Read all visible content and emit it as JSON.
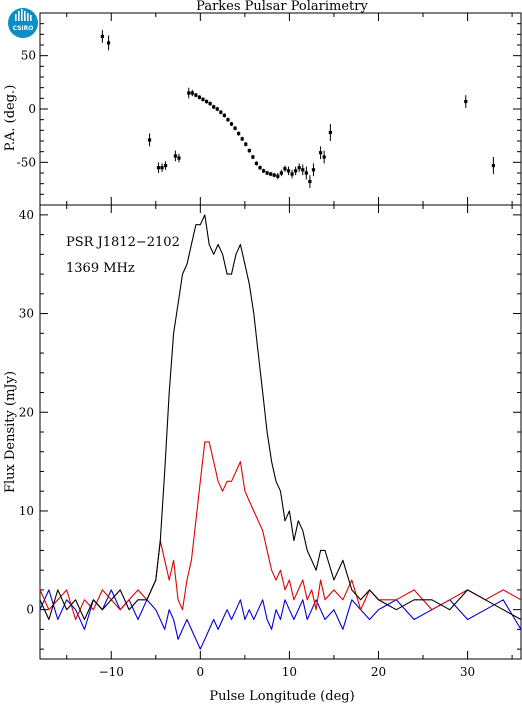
{
  "title": "Parkes Pulsar Polarimetry",
  "logo": {
    "text": "CSIRO",
    "color": "#0a8fc4",
    "icon": "csiro-logo"
  },
  "chart_data": [
    {
      "type": "scatter",
      "name": "position-angle",
      "ylabel": "P.A. (deg.)",
      "xlim": [
        -18,
        36
      ],
      "ylim": [
        -90,
        90
      ],
      "yticks": [
        -50,
        0,
        50
      ],
      "points": [
        {
          "x": -11.0,
          "y": 68,
          "err": 6
        },
        {
          "x": -10.3,
          "y": 62,
          "err": 7
        },
        {
          "x": -5.7,
          "y": -29,
          "err": 6
        },
        {
          "x": -4.7,
          "y": -55,
          "err": 5
        },
        {
          "x": -4.3,
          "y": -55,
          "err": 4
        },
        {
          "x": -3.9,
          "y": -53,
          "err": 4
        },
        {
          "x": -2.8,
          "y": -44,
          "err": 5
        },
        {
          "x": -2.4,
          "y": -46,
          "err": 4
        },
        {
          "x": -1.3,
          "y": 15,
          "err": 5
        },
        {
          "x": -0.9,
          "y": 15,
          "err": 3
        },
        {
          "x": -0.5,
          "y": 13,
          "err": 2
        },
        {
          "x": -0.1,
          "y": 11,
          "err": 2
        },
        {
          "x": 0.3,
          "y": 9,
          "err": 2
        },
        {
          "x": 0.7,
          "y": 7,
          "err": 2
        },
        {
          "x": 1.1,
          "y": 5,
          "err": 2
        },
        {
          "x": 1.5,
          "y": 2,
          "err": 2
        },
        {
          "x": 1.9,
          "y": 0,
          "err": 2
        },
        {
          "x": 2.3,
          "y": -3,
          "err": 2
        },
        {
          "x": 2.7,
          "y": -6,
          "err": 2
        },
        {
          "x": 3.1,
          "y": -10,
          "err": 2
        },
        {
          "x": 3.5,
          "y": -14,
          "err": 2
        },
        {
          "x": 3.9,
          "y": -18,
          "err": 2
        },
        {
          "x": 4.3,
          "y": -23,
          "err": 2
        },
        {
          "x": 4.7,
          "y": -28,
          "err": 2
        },
        {
          "x": 5.1,
          "y": -33,
          "err": 2
        },
        {
          "x": 5.5,
          "y": -39,
          "err": 2
        },
        {
          "x": 5.9,
          "y": -45,
          "err": 2
        },
        {
          "x": 6.3,
          "y": -51,
          "err": 2
        },
        {
          "x": 6.7,
          "y": -55,
          "err": 2
        },
        {
          "x": 7.1,
          "y": -58,
          "err": 2
        },
        {
          "x": 7.5,
          "y": -60,
          "err": 2
        },
        {
          "x": 7.9,
          "y": -61,
          "err": 2
        },
        {
          "x": 8.3,
          "y": -62,
          "err": 2
        },
        {
          "x": 8.7,
          "y": -63,
          "err": 3
        },
        {
          "x": 9.1,
          "y": -60,
          "err": 3
        },
        {
          "x": 9.5,
          "y": -56,
          "err": 3
        },
        {
          "x": 9.9,
          "y": -58,
          "err": 4
        },
        {
          "x": 10.3,
          "y": -61,
          "err": 4
        },
        {
          "x": 10.7,
          "y": -58,
          "err": 4
        },
        {
          "x": 11.1,
          "y": -55,
          "err": 4
        },
        {
          "x": 11.5,
          "y": -57,
          "err": 5
        },
        {
          "x": 11.9,
          "y": -60,
          "err": 6
        },
        {
          "x": 12.3,
          "y": -68,
          "err": 6
        },
        {
          "x": 12.7,
          "y": -57,
          "err": 6
        },
        {
          "x": 13.5,
          "y": -41,
          "err": 6
        },
        {
          "x": 13.9,
          "y": -45,
          "err": 6
        },
        {
          "x": 14.6,
          "y": -22,
          "err": 8
        },
        {
          "x": 29.8,
          "y": 7,
          "err": 6
        },
        {
          "x": 32.9,
          "y": -53,
          "err": 8
        }
      ]
    },
    {
      "type": "line",
      "name": "flux-density",
      "title": "PSR J1812−2102",
      "subtitle": "1369 MHz",
      "xlabel": "Pulse Longitude (deg)",
      "ylabel": "Flux Density (mJy)",
      "xlim": [
        -18,
        36
      ],
      "ylim": [
        -5,
        41
      ],
      "xticks": [
        -10,
        0,
        10,
        20,
        30
      ],
      "yticks": [
        0,
        10,
        20,
        30,
        40
      ],
      "series": [
        {
          "color": "#000000",
          "x": [
            -18,
            -17,
            -16,
            -15,
            -14,
            -13,
            -12,
            -11,
            -10,
            -9,
            -8,
            -7,
            -6,
            -5,
            -4.5,
            -4,
            -3.5,
            -3,
            -2.5,
            -2,
            -1.5,
            -1,
            -0.5,
            0,
            0.5,
            1,
            1.5,
            2,
            2.5,
            3,
            3.5,
            4,
            4.5,
            5,
            5.5,
            6,
            6.5,
            7,
            7.5,
            8,
            8.5,
            9,
            9.5,
            10,
            10.5,
            11,
            11.5,
            12,
            12.5,
            13,
            13.5,
            14,
            15,
            16,
            17,
            18,
            19,
            20,
            22,
            24,
            26,
            28,
            30,
            32,
            34,
            36
          ],
          "y": [
            1,
            -1,
            2,
            0,
            1,
            -1,
            1,
            0,
            1,
            2,
            0,
            1,
            1,
            3,
            7,
            14,
            22,
            28,
            31,
            34,
            35,
            37,
            39,
            39,
            40,
            37,
            36,
            37,
            36,
            34,
            34,
            36,
            37,
            35,
            33,
            30,
            26,
            22,
            18,
            15,
            13,
            12,
            9,
            10,
            7,
            9,
            8,
            6,
            5,
            4,
            6,
            6,
            3,
            5,
            2,
            1,
            2,
            1,
            0,
            1,
            1,
            0,
            2,
            1,
            0,
            -1
          ]
        },
        {
          "color": "#e00000",
          "x": [
            -18,
            -17,
            -16,
            -15,
            -14,
            -13,
            -12,
            -11,
            -10,
            -9,
            -8,
            -7,
            -6,
            -5,
            -4.5,
            -4,
            -3.5,
            -3,
            -2.5,
            -2,
            -1.5,
            -1,
            -0.5,
            0,
            0.5,
            1,
            1.5,
            2,
            2.5,
            3,
            3.5,
            4,
            4.5,
            5,
            5.5,
            6,
            6.5,
            7,
            7.5,
            8,
            8.5,
            9,
            9.5,
            10,
            10.5,
            11,
            11.5,
            12,
            12.5,
            13,
            13.5,
            14,
            15,
            16,
            17,
            18,
            19,
            20,
            22,
            24,
            26,
            28,
            30,
            32,
            34,
            36
          ],
          "y": [
            2,
            0,
            1,
            2,
            -1,
            1,
            0,
            2,
            1,
            0,
            1,
            2,
            1,
            3,
            7,
            5,
            3,
            5,
            1,
            0,
            3,
            5,
            9,
            13,
            17,
            17,
            15,
            13,
            12,
            13,
            13,
            14,
            15,
            12,
            11,
            10,
            9,
            8,
            6,
            4,
            3,
            4,
            2,
            3,
            1,
            2,
            3,
            1,
            2,
            0,
            3,
            1,
            2,
            1,
            3,
            0,
            2,
            1,
            1,
            2,
            0,
            1,
            2,
            1,
            2,
            1
          ]
        },
        {
          "color": "#0000d8",
          "x": [
            -18,
            -17,
            -16,
            -15,
            -14,
            -13,
            -12,
            -11,
            -10,
            -9,
            -8,
            -7,
            -6,
            -5,
            -4.5,
            -4,
            -3.5,
            -3,
            -2.5,
            -2,
            -1.5,
            -1,
            -0.5,
            0,
            0.5,
            1,
            1.5,
            2,
            2.5,
            3,
            3.5,
            4,
            4.5,
            5,
            5.5,
            6,
            6.5,
            7,
            7.5,
            8,
            8.5,
            9,
            9.5,
            10,
            10.5,
            11,
            11.5,
            12,
            12.5,
            13,
            13.5,
            14,
            15,
            16,
            17,
            18,
            19,
            20,
            22,
            24,
            26,
            28,
            30,
            32,
            34,
            36
          ],
          "y": [
            0,
            2,
            -1,
            1,
            0,
            -2,
            1,
            0,
            2,
            0,
            1,
            -1,
            1,
            0,
            -1,
            -2,
            0,
            -1,
            -3,
            -2,
            -1,
            -2,
            -3,
            -4,
            -3,
            -2,
            -1,
            -2,
            -1,
            0,
            -1,
            0,
            1,
            -1,
            0,
            -1,
            0,
            1,
            -1,
            -2,
            0,
            -1,
            1,
            0,
            -1,
            0,
            1,
            -1,
            0,
            1,
            0,
            -1,
            0,
            -2,
            1,
            0,
            -1,
            0,
            1,
            -1,
            0,
            1,
            -1,
            0,
            1,
            -2
          ]
        }
      ]
    }
  ]
}
